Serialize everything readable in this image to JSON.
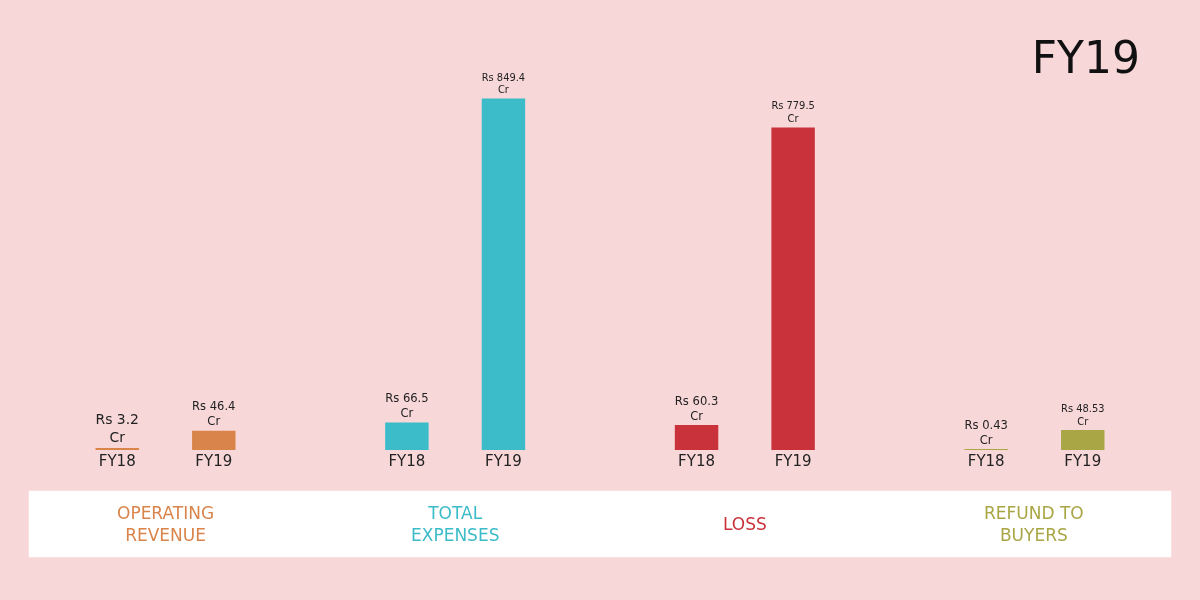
{
  "chart_data": {
    "type": "bar",
    "title": "FY19",
    "categories": [
      "FY18",
      "FY19",
      "FY18",
      "FY19",
      "FY18",
      "FY19",
      "FY18",
      "FY19"
    ],
    "values": [
      3.2,
      46.4,
      66.5,
      849.4,
      60.3,
      779.5,
      0.43,
      48.53
    ],
    "colors": [
      "#d9844a",
      "#d9844a",
      "#3bbcc8",
      "#3bbcc8",
      "#c9323a",
      "#c9323a",
      "#a9a646",
      "#a9a646"
    ],
    "value_labels": [
      "Rs 3.2 Cr",
      "Rs 46.4 Cr",
      "Rs 66.5 Cr",
      "Rs 849.4 Cr",
      "Rs 60.3 Cr",
      "Rs 779.5 Cr",
      "Rs 0.43 Cr",
      "Rs 48.53 Cr"
    ],
    "annotations": [
      "OPERATING REVENUE",
      "TOTAL EXPENSES",
      "LOSS",
      "REFUND TO BUYERS"
    ],
    "grid": false,
    "legend": false
  }
}
